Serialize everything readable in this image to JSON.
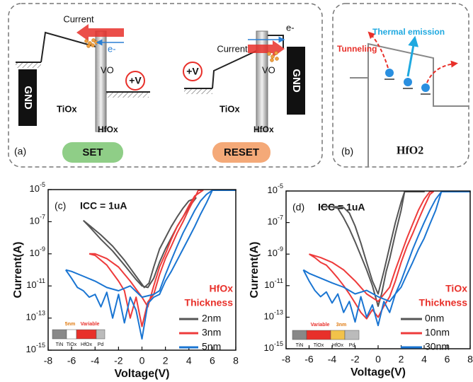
{
  "diagram_a": {
    "panel": "(a)",
    "set": {
      "current": "Current",
      "electron": "e-",
      "vacancy": "VO",
      "voltage": "+V",
      "ground": "GND",
      "tiox": "TiOx",
      "hfox": "HfOx",
      "button": "SET"
    },
    "reset": {
      "current": "Current",
      "electron": "e-",
      "vacancy": "VO",
      "voltage": "+V",
      "ground": "GND",
      "tiox": "TiOx",
      "hfox": "HfOx",
      "button": "RESET"
    }
  },
  "diagram_b": {
    "panel": "(b)",
    "tunneling": "Tunneling",
    "thermal": "Thermal emission",
    "material": "HfO2"
  },
  "chart_data": [
    {
      "type": "line",
      "panel": "(c)",
      "annotation": "ICC = 1uA",
      "xlabel": "Voltage(V)",
      "ylabel": "Current(A)",
      "xlim": [
        -8,
        8
      ],
      "xticks": [
        -8,
        -6,
        -4,
        -2,
        0,
        2,
        4,
        6,
        8
      ],
      "ylim": [
        1e-15,
        1e-05
      ],
      "yscale": "log",
      "yticks": [
        {
          "value": 1e-15,
          "label": "10-15"
        },
        {
          "value": 1e-13,
          "label": "10-13"
        },
        {
          "value": 1e-11,
          "label": "10-11"
        },
        {
          "value": 1e-09,
          "label": "10-9"
        },
        {
          "value": 1e-07,
          "label": "10-7"
        },
        {
          "value": 1e-05,
          "label": "10-5"
        }
      ],
      "legend_title": [
        "HfOx",
        "Thickness"
      ],
      "legend": "lower right",
      "inset": {
        "layers": [
          "TiN",
          "TiOx",
          "HfOx",
          "Pd"
        ],
        "dimensions": [
          "5nm",
          "Variable"
        ]
      },
      "series": [
        {
          "name": "2nm",
          "color": "#555555",
          "x": [
            -5,
            -4.5,
            -3.5,
            -2.5,
            -1.5,
            -0.5,
            0,
            0.5,
            1,
            1.5,
            2,
            2.5,
            3,
            3.5,
            4,
            4.6,
            4,
            3.5,
            3,
            2.5,
            2,
            1.5,
            1,
            0.6,
            0.2,
            -0.5,
            -1.5,
            -2.5,
            -3.5,
            -4.5,
            -5
          ],
          "values": [
            1.2e-07,
            5e-08,
            8e-09,
            1.5e-09,
            2e-10,
            2.5e-11,
            1e-11,
            8e-12,
            3e-11,
            3e-10,
            2e-09,
            1e-08,
            5e-08,
            2e-07,
            8e-07,
            3e-06,
            2e-06,
            7e-07,
            2e-07,
            5e-08,
            1e-08,
            2e-09,
            1.5e-10,
            1.5e-11,
            8e-12,
            4e-11,
            4e-10,
            3e-09,
            1.5e-08,
            6e-08,
            1.2e-07
          ]
        },
        {
          "name": "3nm",
          "color": "#ee3b3b",
          "x": [
            -4.5,
            -4,
            -3,
            -2,
            -1.5,
            -1,
            -0.5,
            0,
            0.5,
            1,
            1.5,
            2,
            2.5,
            3,
            3.5,
            4,
            4.5,
            4.8,
            5.2,
            4.5,
            4,
            3.5,
            3,
            2.5,
            2,
            1.5,
            1,
            0.5,
            0,
            -1,
            -2,
            -3,
            -4,
            -4.5
          ],
          "values": [
            1e-09,
            8e-10,
            2e-10,
            2e-11,
            5e-12,
            1e-13,
            2e-12,
            3e-14,
            1e-12,
            3e-12,
            5e-11,
            5e-10,
            3e-09,
            2e-08,
            1e-07,
            6e-07,
            3e-06,
            9e-06,
            9e-06,
            4e-06,
            1e-06,
            2e-07,
            5e-08,
            8e-09,
            1e-09,
            1.5e-10,
            1e-11,
            5e-13,
            2e-12,
            2e-11,
            1.5e-10,
            5e-10,
            1e-09,
            1e-09
          ]
        },
        {
          "name": "5nm",
          "color": "#1a75d2",
          "x": [
            -6.5,
            -6,
            -5.5,
            -5,
            -4.5,
            -4,
            -3.5,
            -3,
            -2.5,
            -2,
            -1.5,
            -1,
            -0.5,
            0,
            0.5,
            1,
            1.5,
            2,
            2.5,
            3,
            3.5,
            4,
            4.5,
            5,
            5.5,
            6,
            8,
            6,
            5.5,
            5,
            4.5,
            4,
            3.5,
            3,
            2.5,
            2,
            1.5,
            1,
            0,
            -1,
            -2,
            -3,
            -4,
            -5,
            -6,
            -6.5
          ],
          "values": [
            1e-10,
            3e-11,
            8e-12,
            5e-12,
            2e-12,
            3e-12,
            5e-13,
            4e-12,
            1e-13,
            3e-12,
            5e-14,
            2e-12,
            3e-13,
            5e-15,
            8e-13,
            2e-12,
            3e-12,
            2e-11,
            8e-11,
            4e-10,
            2e-09,
            1e-08,
            5e-08,
            3e-07,
            1.5e-06,
            9e-06,
            9e-06,
            9e-06,
            5e-06,
            2e-06,
            5e-07,
            1e-07,
            2e-08,
            3e-09,
            4e-10,
            5e-11,
            5e-12,
            3e-12,
            2e-12,
            1e-11,
            5e-12,
            8e-12,
            2e-11,
            4e-11,
            8e-11,
            1e-10
          ]
        }
      ]
    },
    {
      "type": "line",
      "panel": "(d)",
      "annotation": "ICC = 1uA",
      "xlabel": "Voltage(V)",
      "ylabel": "Current(A)",
      "xlim": [
        -8,
        8
      ],
      "xticks": [
        -8,
        -6,
        -4,
        -2,
        0,
        2,
        4,
        6,
        8
      ],
      "ylim": [
        1e-15,
        1e-05
      ],
      "yscale": "log",
      "yticks": [
        {
          "value": 1e-15,
          "label": "10-15"
        },
        {
          "value": 1e-13,
          "label": "10-13"
        },
        {
          "value": 1e-11,
          "label": "10-11"
        },
        {
          "value": 1e-09,
          "label": "10-9"
        },
        {
          "value": 1e-07,
          "label": "10-7"
        },
        {
          "value": 1e-05,
          "label": "10-5"
        }
      ],
      "legend_title": [
        "TiOx",
        "Thickness"
      ],
      "legend": "lower right",
      "inset": {
        "layers": [
          "TiN",
          "TiOx",
          "HfOx",
          "Pd"
        ],
        "dimensions": [
          "Variable",
          "3nm"
        ]
      },
      "series": [
        {
          "name": "0nm",
          "color": "#555555",
          "x": [
            -5,
            -4,
            -3.5,
            -3,
            -2.5,
            -2,
            -1.5,
            -1,
            -0.5,
            0,
            0.3,
            0.7,
            1,
            1.5,
            2,
            2.3,
            4,
            2.3,
            2,
            1.5,
            1,
            0.5,
            0,
            -0.5,
            -1,
            -1.5,
            -2,
            -2.5,
            -3,
            -3.5,
            -4,
            -5
          ],
          "values": [
            1e-06,
            1e-06,
            8e-07,
            2e-07,
            4e-08,
            6e-09,
            8e-10,
            1e-10,
            1e-11,
            5e-13,
            3e-12,
            8e-11,
            5e-10,
            2e-08,
            6e-07,
            9e-06,
            9e-06,
            9e-06,
            2e-06,
            1e-07,
            3e-09,
            8e-11,
            3e-12,
            2e-11,
            3e-10,
            5e-09,
            6e-08,
            4e-07,
            9e-07,
            1e-06,
            1e-06,
            1e-06
          ]
        },
        {
          "name": "10nm",
          "color": "#ee3b3b",
          "x": [
            -6,
            -5.5,
            -5,
            -4.5,
            -4,
            -3.5,
            -3,
            -2.5,
            -2,
            -1.5,
            -1,
            -0.5,
            0,
            0.5,
            1,
            1.5,
            2,
            2.5,
            3,
            3.5,
            4,
            4.5,
            4.8,
            4.5,
            4,
            3.5,
            3,
            2.5,
            2,
            1.5,
            1,
            0,
            -1,
            -2,
            -3,
            -4,
            -5,
            -6
          ],
          "values": [
            1e-09,
            6e-10,
            3e-10,
            2e-10,
            8e-11,
            3e-11,
            1e-11,
            3e-12,
            8e-13,
            2e-13,
            8e-14,
            3e-13,
            1e-13,
            5e-13,
            2e-12,
            2e-11,
            3e-10,
            3e-09,
            2e-08,
            1.5e-07,
            1e-06,
            6e-06,
            9e-06,
            9e-06,
            3e-06,
            6e-07,
            8e-08,
            1e-08,
            1e-09,
            1e-10,
            8e-12,
            1e-12,
            3e-12,
            2e-11,
            1e-10,
            3e-10,
            6e-10,
            1e-09
          ]
        },
        {
          "name": "30nm",
          "color": "#1a75d2",
          "x": [
            -6.5,
            -6,
            -5.5,
            -5,
            -4.5,
            -4,
            -3.5,
            -3,
            -2.5,
            -2,
            -1.5,
            -1,
            -0.5,
            0,
            0.5,
            1,
            1.5,
            2,
            2.5,
            3,
            3.5,
            4,
            4.5,
            5,
            5.5,
            8,
            5.5,
            5,
            4.5,
            4,
            3.5,
            3,
            2.5,
            2,
            1.5,
            1,
            0,
            -1,
            -2,
            -3,
            -4,
            -5,
            -6,
            -6.5
          ],
          "values": [
            1e-10,
            2e-11,
            5e-12,
            2e-12,
            4e-12,
            8e-13,
            3e-12,
            2e-13,
            1e-12,
            5e-14,
            2e-12,
            1e-13,
            6e-13,
            3e-14,
            1e-12,
            2e-13,
            3e-12,
            8e-12,
            5e-11,
            3e-10,
            2e-09,
            1e-08,
            8e-08,
            6e-07,
            9e-06,
            9e-06,
            9e-06,
            3e-06,
            6e-07,
            1e-07,
            1.5e-08,
            2e-09,
            2e-10,
            2e-11,
            3e-12,
            1e-12,
            2e-12,
            5e-12,
            3e-12,
            8e-12,
            1.5e-11,
            3e-11,
            6e-11,
            1e-10
          ]
        }
      ]
    }
  ]
}
